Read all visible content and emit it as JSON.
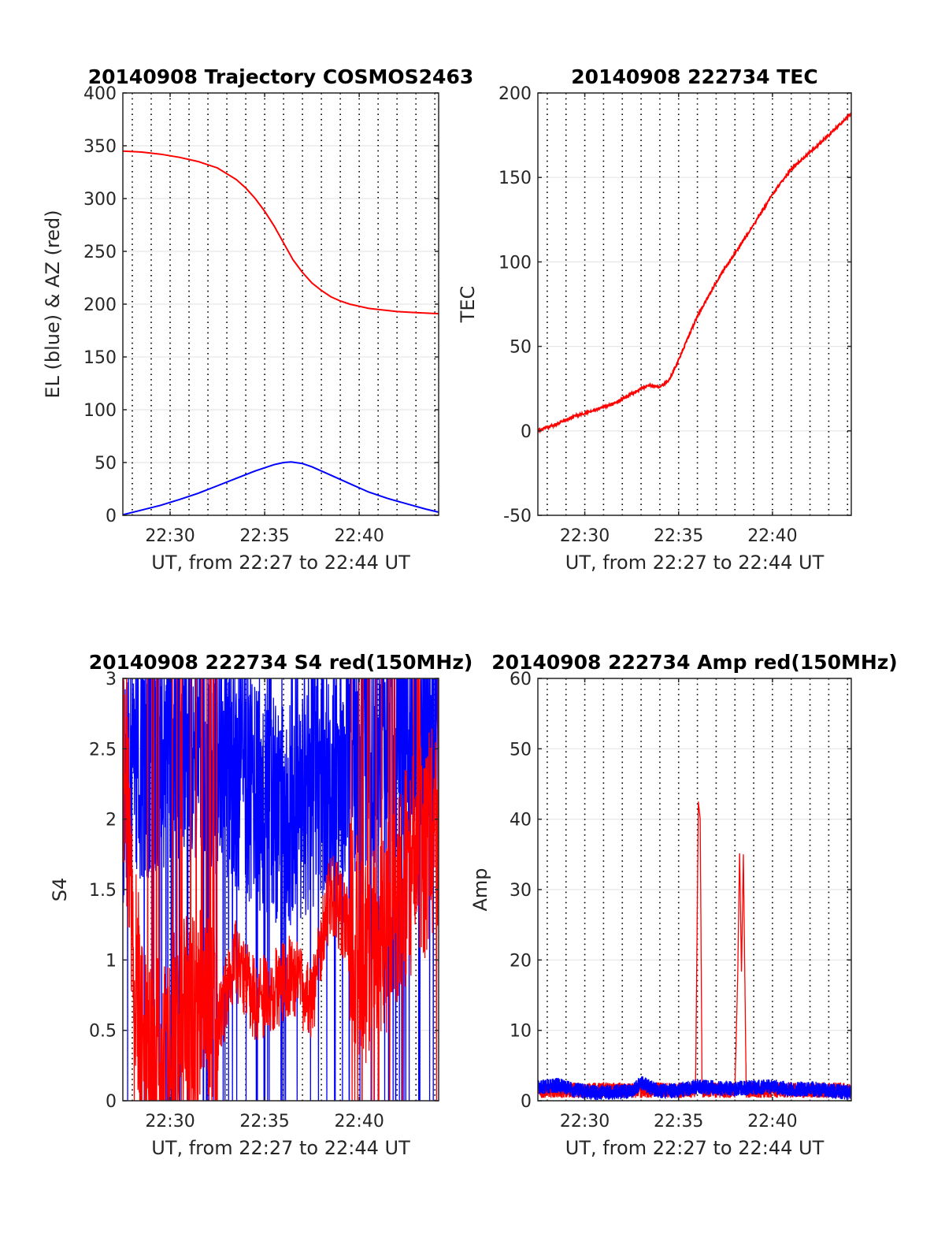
{
  "figure": {
    "colors": {
      "red": "#ff0000",
      "blue": "#0000ff",
      "axis": "#262626",
      "grid": "#e6e6e6",
      "vline": "#000000"
    }
  },
  "chart_data": [
    {
      "type": "line",
      "title": "20140908 Trajectory COSMOS2463",
      "xlabel": "UT, from 22:27 to 22:44 UT",
      "ylabel": "EL (blue) & AZ (red)",
      "xlim": [
        27.5,
        44.2
      ],
      "ylim": [
        0,
        400
      ],
      "yticks": [
        0,
        50,
        100,
        150,
        200,
        250,
        300,
        350,
        400
      ],
      "xticks": [
        {
          "at": 30,
          "label": "22:30"
        },
        {
          "at": 35,
          "label": "22:35"
        },
        {
          "at": 40,
          "label": "22:40"
        }
      ],
      "grid": true,
      "series": [
        {
          "color": "red",
          "x": [
            27.5,
            28.5,
            29.5,
            30.5,
            31.5,
            32.5,
            33.5,
            34.0,
            34.5,
            35.0,
            35.5,
            36.0,
            36.5,
            37.0,
            37.5,
            38.0,
            38.5,
            39.0,
            39.5,
            40.0,
            40.5,
            41.0,
            42.0,
            43.0,
            44.2
          ],
          "values": [
            345,
            344,
            342,
            339,
            335,
            329,
            318,
            310,
            300,
            288,
            274,
            258,
            242,
            230,
            220,
            213,
            207,
            203,
            200,
            198,
            196,
            195,
            193,
            192,
            191
          ]
        },
        {
          "color": "blue",
          "x": [
            27.5,
            28.5,
            29.5,
            30.5,
            31.5,
            32.5,
            33.5,
            34.5,
            35.5,
            36.0,
            36.4,
            37.0,
            37.5,
            38.5,
            39.5,
            40.5,
            41.5,
            42.5,
            43.5,
            44.2
          ],
          "values": [
            0.5,
            5,
            9.5,
            15,
            21,
            28,
            35,
            42,
            48,
            50,
            50.5,
            49,
            46,
            38,
            30,
            22,
            16,
            11,
            6,
            3
          ]
        }
      ]
    },
    {
      "type": "line",
      "title": "20140908 222734 TEC",
      "xlabel": "UT, from 22:27 to 22:44 UT",
      "ylabel": "TEC",
      "xlim": [
        27.5,
        44.2
      ],
      "ylim": [
        -50,
        200
      ],
      "yticks": [
        -50,
        0,
        50,
        100,
        150,
        200
      ],
      "xticks": [
        {
          "at": 30,
          "label": "22:30"
        },
        {
          "at": 35,
          "label": "22:35"
        },
        {
          "at": 40,
          "label": "22:40"
        }
      ],
      "grid": true,
      "series": [
        {
          "color": "red",
          "x": [
            27.5,
            28.5,
            29.5,
            30.5,
            31.5,
            32.5,
            33.0,
            33.5,
            34.0,
            34.5,
            35.0,
            35.5,
            36.0,
            36.5,
            37.0,
            37.5,
            38.0,
            39.0,
            40.0,
            41.0,
            42.0,
            43.0,
            44.2
          ],
          "values": [
            0,
            4,
            9,
            12,
            16,
            22,
            25,
            27,
            26,
            30,
            42,
            55,
            68,
            78,
            88,
            97,
            105,
            122,
            140,
            155,
            165,
            175,
            188
          ]
        }
      ]
    },
    {
      "type": "line",
      "title": "20140908 222734 S4 red(150MHz)",
      "xlabel": "UT, from 22:27 to 22:44 UT",
      "ylabel": "S4",
      "xlim": [
        27.5,
        44.2
      ],
      "ylim": [
        0,
        3
      ],
      "yticks": [
        0,
        0.5,
        1,
        1.5,
        2,
        2.5,
        3
      ],
      "xticks": [
        {
          "at": 30,
          "label": "22:30"
        },
        {
          "at": 35,
          "label": "22:35"
        },
        {
          "at": 40,
          "label": "22:40"
        }
      ],
      "grid": true,
      "series": [
        {
          "color": "blue",
          "x": [
            27.5,
            29.0,
            30.5,
            32.0,
            33.5,
            35.0,
            36.5,
            38.0,
            39.5,
            41.0,
            42.5,
            44.2
          ],
          "values": [
            2.2,
            2.4,
            2.5,
            2.4,
            2.3,
            2.1,
            2.0,
            2.2,
            2.4,
            2.5,
            2.6,
            2.6
          ]
        },
        {
          "color": "red",
          "x": [
            27.5,
            28.5,
            29.5,
            30.5,
            31.5,
            32.5,
            33.5,
            34.5,
            35.5,
            36.5,
            37.5,
            38.5,
            39.5,
            40.5,
            41.5,
            42.5,
            43.5,
            44.2
          ],
          "values": [
            2.5,
            0.3,
            0.2,
            0.5,
            0.6,
            0.5,
            1.0,
            0.7,
            0.8,
            0.9,
            0.7,
            1.5,
            1.2,
            1.0,
            1.3,
            1.6,
            1.8,
            1.9
          ]
        }
      ]
    },
    {
      "type": "line",
      "title": "20140908 222734 Amp red(150MHz)",
      "xlabel": "UT, from 22:27 to 22:44 UT",
      "ylabel": "Amp",
      "xlim": [
        27.5,
        44.2
      ],
      "ylim": [
        0,
        60
      ],
      "yticks": [
        0,
        10,
        20,
        30,
        40,
        50,
        60
      ],
      "xticks": [
        {
          "at": 30,
          "label": "22:30"
        },
        {
          "at": 35,
          "label": "22:35"
        },
        {
          "at": 40,
          "label": "22:40"
        }
      ],
      "grid": true,
      "series": [
        {
          "color": "red",
          "x": [
            27.5,
            30.0,
            33.0,
            35.9,
            36.05,
            36.15,
            36.25,
            36.45,
            37.0,
            38.0,
            38.15,
            38.25,
            38.35,
            38.45,
            38.6,
            40.0,
            42.0,
            44.2
          ],
          "values": [
            1.5,
            1.5,
            1.5,
            1.5,
            42.5,
            40,
            1.5,
            1.5,
            1.5,
            1.5,
            18,
            35.5,
            18,
            35,
            1.5,
            1.5,
            1.5,
            1.5
          ]
        },
        {
          "color": "blue",
          "x": [
            27.5,
            28.5,
            29.5,
            30.5,
            31.5,
            32.5,
            33.0,
            34.0,
            35.0,
            36.0,
            37.0,
            38.0,
            39.0,
            40.0,
            41.0,
            42.0,
            43.0,
            44.2
          ],
          "values": [
            2.0,
            2.2,
            1.5,
            1.2,
            1.2,
            1.4,
            2.5,
            1.3,
            1.5,
            2.0,
            1.8,
            1.7,
            1.9,
            2.0,
            1.6,
            1.7,
            1.4,
            1.2
          ]
        }
      ]
    }
  ]
}
